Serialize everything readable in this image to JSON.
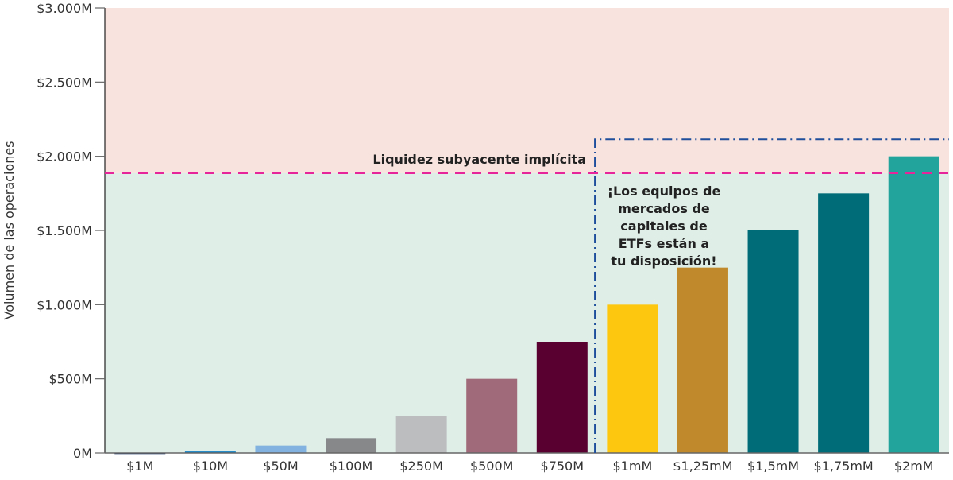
{
  "chart_data": {
    "type": "bar",
    "ylabel": "Volumen de las operaciones",
    "xlabel": "",
    "ylim": [
      0,
      3000
    ],
    "yticks": [
      0,
      500,
      1000,
      1500,
      2000,
      2500,
      3000
    ],
    "ytick_labels": [
      "0M",
      "$500M",
      "$1.000M",
      "$1.500M",
      "$2.000M",
      "$2.500M",
      "$3.000M"
    ],
    "categories": [
      "$1M",
      "$10M",
      "$50M",
      "$100M",
      "$250M",
      "$500M",
      "$750M",
      "$1mM",
      "$1,25mM",
      "$1,5mM",
      "$1,75mM",
      "$2mM"
    ],
    "values": [
      1,
      10,
      50,
      100,
      250,
      500,
      750,
      1000,
      1250,
      1500,
      1750,
      2000
    ],
    "bar_colors": [
      "#1d3a6b",
      "#0a7cc1",
      "#82b2e0",
      "#87888a",
      "#bcbdbf",
      "#a06a7a",
      "#5a0030",
      "#fec70f",
      "#c08a2c",
      "#006c78",
      "#006c78",
      "#22a39c"
    ],
    "grid": false,
    "threshold": {
      "label": "Liquidez subyacente implícita",
      "value": 1886,
      "color": "#e6259a"
    },
    "zones": {
      "below_color": "#dfeee7",
      "above_color": "#f9e3de"
    },
    "callout": {
      "lines": [
        "¡Los equipos de",
        "mercados de",
        "capitales de",
        "ETFs están a",
        "tu disposición!"
      ],
      "box_top_value": 2115,
      "box_start_category": "$1mM",
      "color": "#1f4f9c"
    }
  }
}
